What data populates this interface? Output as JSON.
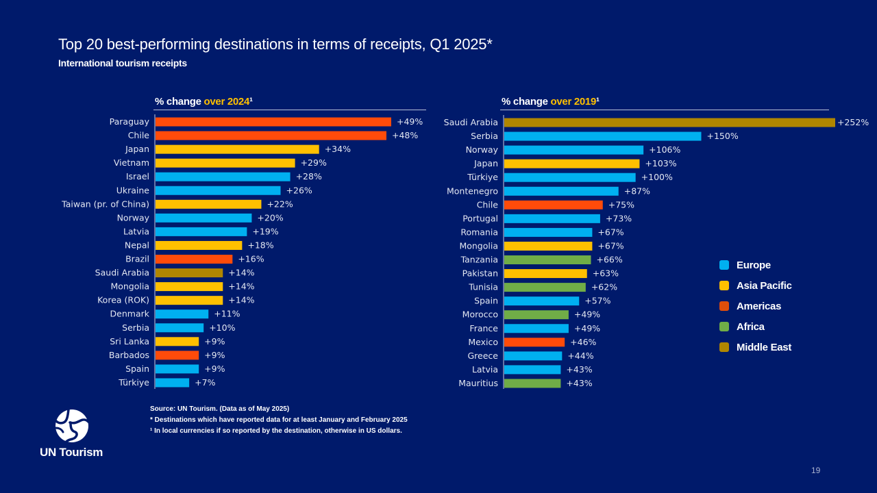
{
  "header": {
    "title": "Top 20 best-performing destinations in terms of receipts, Q1 2025*",
    "subtitle": "International tourism receipts"
  },
  "colors": {
    "background": "#001A6B",
    "Europe": "#00B0F0",
    "Asia Pacific": "#FFC000",
    "Americas": "#FF4B0A",
    "Africa": "#70AD47",
    "Middle East": "#B08600"
  },
  "chart_data": [
    {
      "type": "bar",
      "orientation": "horizontal",
      "title_prefix": "% change ",
      "title_highlight": "over 2024",
      "title_suffix": "¹",
      "xlim": [
        0,
        49
      ],
      "categories": [
        "Paraguay",
        "Chile",
        "Japan",
        "Vietnam",
        "Israel",
        "Ukraine",
        "Taiwan (pr. of China)",
        "Norway",
        "Latvia",
        "Nepal",
        "Brazil",
        "Saudi Arabia",
        "Mongolia",
        "Korea (ROK)",
        "Denmark",
        "Serbia",
        "Sri Lanka",
        "Barbados",
        "Spain",
        "Türkiye"
      ],
      "values": [
        49,
        48,
        34,
        29,
        28,
        26,
        22,
        20,
        19,
        18,
        16,
        14,
        14,
        14,
        11,
        10,
        9,
        9,
        9,
        7
      ],
      "labels": [
        "+49%",
        "+48%",
        "+34%",
        "+29%",
        "+28%",
        "+26%",
        "+22%",
        "+20%",
        "+19%",
        "+18%",
        "+16%",
        "+14%",
        "+14%",
        "+14%",
        "+11%",
        "+10%",
        "+9%",
        "+9%",
        "+9%",
        "+7%"
      ],
      "regions": [
        "Americas",
        "Americas",
        "Asia Pacific",
        "Asia Pacific",
        "Europe",
        "Europe",
        "Asia Pacific",
        "Europe",
        "Europe",
        "Asia Pacific",
        "Americas",
        "Middle East",
        "Asia Pacific",
        "Asia Pacific",
        "Europe",
        "Europe",
        "Asia Pacific",
        "Americas",
        "Europe",
        "Europe"
      ]
    },
    {
      "type": "bar",
      "orientation": "horizontal",
      "title_prefix": "% change ",
      "title_highlight": "over 2019",
      "title_suffix": "¹",
      "xlim": [
        0,
        252
      ],
      "categories": [
        "Saudi Arabia",
        "Serbia",
        "Norway",
        "Japan",
        "Türkiye",
        "Montenegro",
        "Chile",
        "Portugal",
        "Romania",
        "Mongolia",
        "Tanzania",
        "Pakistan",
        "Tunisia",
        "Spain",
        "Morocco",
        "France",
        "Mexico",
        "Greece",
        "Latvia",
        "Mauritius"
      ],
      "values": [
        252,
        150,
        106,
        103,
        100,
        87,
        75,
        73,
        67,
        67,
        66,
        63,
        62,
        57,
        49,
        49,
        46,
        44,
        43,
        43
      ],
      "labels": [
        "+252%",
        "+150%",
        "+106%",
        "+103%",
        "+100%",
        "+87%",
        "+75%",
        "+73%",
        "+67%",
        "+67%",
        "+66%",
        "+63%",
        "+62%",
        "+57%",
        "+49%",
        "+49%",
        "+46%",
        "+44%",
        "+43%",
        "+43%"
      ],
      "regions": [
        "Middle East",
        "Europe",
        "Europe",
        "Asia Pacific",
        "Europe",
        "Europe",
        "Americas",
        "Europe",
        "Europe",
        "Asia Pacific",
        "Africa",
        "Asia Pacific",
        "Africa",
        "Europe",
        "Africa",
        "Europe",
        "Americas",
        "Europe",
        "Europe",
        "Africa"
      ]
    }
  ],
  "legend": [
    {
      "label": "Europe",
      "color": "#00B0F0"
    },
    {
      "label": "Asia Pacific",
      "color": "#FFC000"
    },
    {
      "label": "Americas",
      "color": "#E04E0A"
    },
    {
      "label": "Africa",
      "color": "#70AD47"
    },
    {
      "label": "Middle East",
      "color": "#B08600"
    }
  ],
  "footer": {
    "source": "Source: UN Tourism. (Data as of May 2025)",
    "note_star": "* Destinations which have reported data for at least January and February 2025",
    "note_one": "¹ In local currencies if so reported by the destination, otherwise in US dollars.",
    "logo_text": "UN Tourism",
    "page_number": "19"
  }
}
